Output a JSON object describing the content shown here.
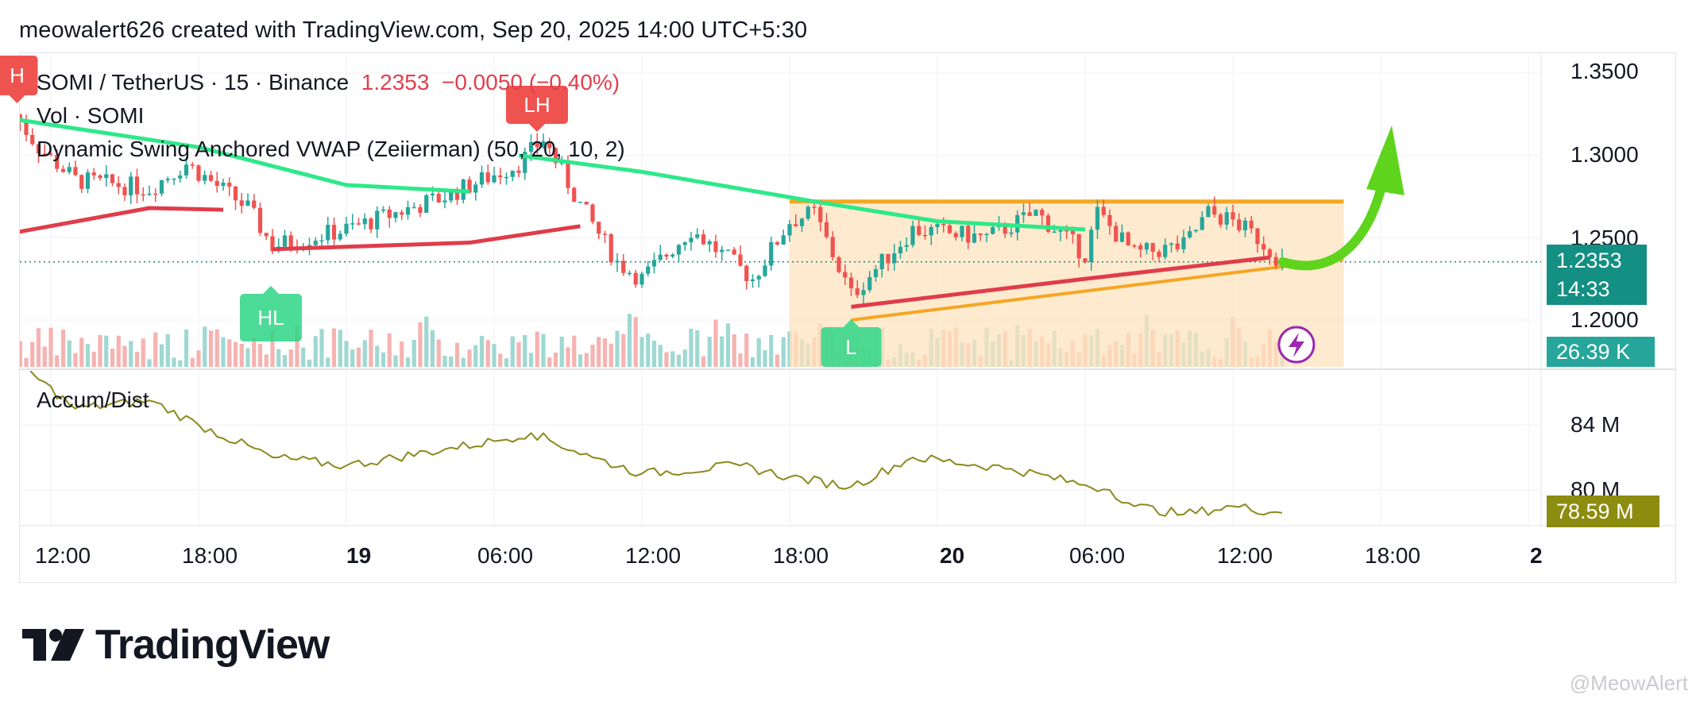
{
  "header": {
    "attribution": "meowalert626 created with TradingView.com, Sep 20, 2025 14:00 UTC+5:30"
  },
  "legend": {
    "symbol": "SOMI / TetherUS · 15 · Binance",
    "price": "1.2353",
    "change": "−0.0050 (−0.40%)",
    "volume": "Vol · SOMI",
    "indicator": "Dynamic Swing Anchored VWAP (Zeiierman) (50, 20, 10, 2)",
    "ad_label": "Accum/Dist"
  },
  "price_axis": {
    "ticks": [
      "1.3500",
      "1.3000",
      "1.2500",
      "1.2000"
    ],
    "last_price": "1.2353",
    "countdown": "14:33",
    "volume_tag": "26.39 K"
  },
  "ad_axis": {
    "ticks": [
      "84 M",
      "80 M"
    ],
    "value_tag": "78.59 M"
  },
  "time_axis": {
    "labels": [
      {
        "text": "12:00",
        "bold": false
      },
      {
        "text": "18:00",
        "bold": false
      },
      {
        "text": "19",
        "bold": true
      },
      {
        "text": "06:00",
        "bold": false
      },
      {
        "text": "12:00",
        "bold": false
      },
      {
        "text": "18:00",
        "bold": false
      },
      {
        "text": "20",
        "bold": true
      },
      {
        "text": "06:00",
        "bold": false
      },
      {
        "text": "12:00",
        "bold": false
      },
      {
        "text": "18:00",
        "bold": false
      },
      {
        "text": "2",
        "bold": true
      }
    ]
  },
  "annotations": {
    "swing_labels": [
      "H",
      "LH",
      "HL",
      "L"
    ]
  },
  "brand": {
    "name": "TradingView"
  },
  "watermark": "@MeowAlert",
  "colors": {
    "up": "#26a69a",
    "down": "#ef5350",
    "vwap_upper": "#2ee88a",
    "vwap_lower": "#e03c4a",
    "triangle": "#f5a623",
    "triangle_fill": "#fde3bd",
    "arrow": "#5fd41d",
    "ad_line": "#8a8a1e",
    "ad_tag": "#8c8c10",
    "price_tag": "#138f83",
    "vol_tag": "#26a69a",
    "lightning": "#9c27b0"
  },
  "chart_data": {
    "type": "candlestick",
    "title": "SOMI / TetherUS · 15 · Binance",
    "timeframe": "15",
    "last_price": 1.2353,
    "change": -0.005,
    "change_pct": -0.4,
    "price_ylim": [
      1.18,
      1.355
    ],
    "price_anchors": [
      {
        "t": "Sep 18 10:30",
        "price": 1.325
      },
      {
        "t": "Sep 18 11:30",
        "price": 1.305
      },
      {
        "t": "Sep 18 13:00",
        "price": 1.285
      },
      {
        "t": "Sep 18 16:00",
        "price": 1.28
      },
      {
        "t": "Sep 18 17:30",
        "price": 1.295
      },
      {
        "t": "Sep 18 20:00",
        "price": 1.268
      },
      {
        "t": "Sep 18 21:00",
        "price": 1.245
      },
      {
        "t": "Sep 19 00:00",
        "price": 1.255
      },
      {
        "t": "Sep 19 04:00",
        "price": 1.275
      },
      {
        "t": "Sep 19 07:00",
        "price": 1.295
      },
      {
        "t": "Sep 19 08:00",
        "price": 1.31
      },
      {
        "t": "Sep 19 09:30",
        "price": 1.27
      },
      {
        "t": "Sep 19 11:00",
        "price": 1.235
      },
      {
        "t": "Sep 19 12:00",
        "price": 1.225
      },
      {
        "t": "Sep 19 14:00",
        "price": 1.255
      },
      {
        "t": "Sep 19 16:30",
        "price": 1.225
      },
      {
        "t": "Sep 19 18:00",
        "price": 1.26
      },
      {
        "t": "Sep 19 19:00",
        "price": 1.265
      },
      {
        "t": "Sep 19 20:30",
        "price": 1.215
      },
      {
        "t": "Sep 19 23:00",
        "price": 1.255
      },
      {
        "t": "Sep 20 02:00",
        "price": 1.25
      },
      {
        "t": "Sep 20 04:00",
        "price": 1.265
      },
      {
        "t": "Sep 20 06:00",
        "price": 1.24
      },
      {
        "t": "Sep 20 06:30",
        "price": 1.265
      },
      {
        "t": "Sep 20 08:00",
        "price": 1.24
      },
      {
        "t": "Sep 20 10:00",
        "price": 1.245
      },
      {
        "t": "Sep 20 11:00",
        "price": 1.265
      },
      {
        "t": "Sep 20 12:00",
        "price": 1.26
      },
      {
        "t": "Sep 20 13:00",
        "price": 1.25
      },
      {
        "t": "Sep 20 14:00",
        "price": 1.2353
      }
    ],
    "vwap_upper": [
      {
        "t": "Sep 18 10:30",
        "price": 1.322
      },
      {
        "t": "Sep 18 18:00",
        "price": 1.305
      },
      {
        "t": "Sep 19 00:00",
        "price": 1.282
      },
      {
        "t": "Sep 19 05:00",
        "price": 1.278
      },
      {
        "t": "Sep 19 07:00",
        "price": 1.3
      },
      {
        "t": "Sep 19 12:00",
        "price": 1.29
      },
      {
        "t": "Sep 19 19:00",
        "price": 1.272
      },
      {
        "t": "Sep 20 00:00",
        "price": 1.26
      },
      {
        "t": "Sep 20 06:00",
        "price": 1.255
      }
    ],
    "vwap_lower": [
      {
        "t": "Sep 18 10:30",
        "price": 1.253
      },
      {
        "t": "Sep 18 16:00",
        "price": 1.268
      },
      {
        "t": "Sep 18 19:00",
        "price": 1.267
      },
      {
        "t": "Sep 18 21:00",
        "price": 1.243
      },
      {
        "t": "Sep 19 05:00",
        "price": 1.247
      },
      {
        "t": "Sep 19 09:30",
        "price": 1.257
      },
      {
        "t": "Sep 19 11:00",
        "price": 1.256
      },
      {
        "t": "Sep 19 20:30",
        "price": 1.208
      },
      {
        "t": "Sep 20 06:00",
        "price": 1.225
      },
      {
        "t": "Sep 20 13:30",
        "price": 1.238
      }
    ],
    "triangle": {
      "resistance": 1.272,
      "support_start": {
        "t": "Sep 19 20:30",
        "price": 1.2
      },
      "support_end": {
        "t": "Sep 20 16:30",
        "price": 1.237
      },
      "box_start": "Sep 19 18:00",
      "box_end": "Sep 20 16:30"
    },
    "swing_points": [
      {
        "label": "H",
        "t": "Sep 18 10:30"
      },
      {
        "label": "LH",
        "t": "Sep 19 08:00"
      },
      {
        "label": "HL",
        "t": "Sep 18 21:00"
      },
      {
        "label": "L",
        "t": "Sep 19 20:30"
      }
    ],
    "accum_dist_ylim": [
      77,
      89
    ],
    "accum_dist": [
      {
        "t": "Sep 18 10:30",
        "value": 88.0
      },
      {
        "t": "Sep 18 13:00",
        "value": 85.0
      },
      {
        "t": "Sep 18 16:00",
        "value": 85.5
      },
      {
        "t": "Sep 18 18:00",
        "value": 84.0
      },
      {
        "t": "Sep 18 21:00",
        "value": 82.0
      },
      {
        "t": "Sep 19 00:00",
        "value": 81.5
      },
      {
        "t": "Sep 19 04:00",
        "value": 82.5
      },
      {
        "t": "Sep 19 06:00",
        "value": 83.0
      },
      {
        "t": "Sep 19 07:30",
        "value": 83.5
      },
      {
        "t": "Sep 19 10:00",
        "value": 82.0
      },
      {
        "t": "Sep 19 12:00",
        "value": 81.0
      },
      {
        "t": "Sep 19 16:00",
        "value": 81.5
      },
      {
        "t": "Sep 19 18:00",
        "value": 80.8
      },
      {
        "t": "Sep 19 20:30",
        "value": 80.2
      },
      {
        "t": "Sep 19 23:00",
        "value": 82.0
      },
      {
        "t": "Sep 20 03:00",
        "value": 81.3
      },
      {
        "t": "Sep 20 06:00",
        "value": 80.3
      },
      {
        "t": "Sep 20 07:00",
        "value": 80.0
      },
      {
        "t": "Sep 20 08:00",
        "value": 79.0
      },
      {
        "t": "Sep 20 10:00",
        "value": 78.5
      },
      {
        "t": "Sep 20 12:00",
        "value": 79.0
      },
      {
        "t": "Sep 20 14:00",
        "value": 78.59
      }
    ],
    "volume_last": "26.39 K",
    "grid": true
  }
}
